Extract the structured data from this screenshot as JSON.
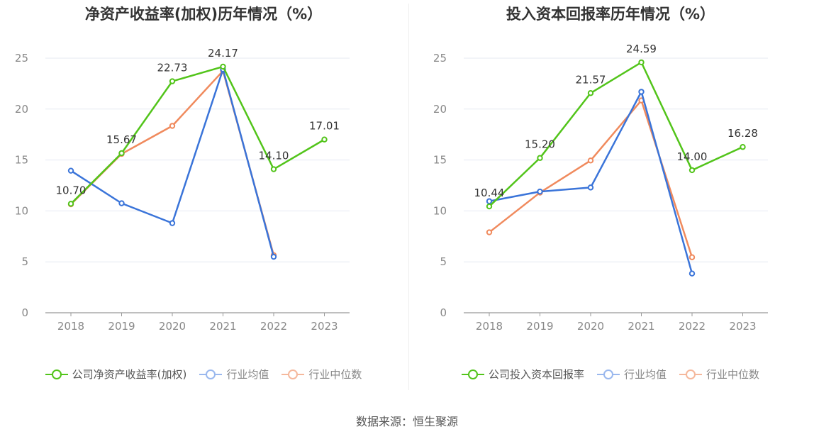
{
  "charts": [
    {
      "title": "净资产收益率(加权)历年情况（%）",
      "legend": [
        "公司净资产收益率(加权)",
        "行业均值",
        "行业中位数"
      ]
    },
    {
      "title": "投入资本回报率历年情况（%）",
      "legend": [
        "公司投入资本回报率",
        "行业均值",
        "行业中位数"
      ]
    }
  ],
  "source": "数据来源：恒生聚源",
  "colors": {
    "company": "#52c41a",
    "mean": "#3a74d9",
    "median": "#f08a5d",
    "grid": "#e6e9f2",
    "axis": "#999999",
    "tick_text": "#888888"
  },
  "chart_data": [
    {
      "type": "line",
      "title": "净资产收益率(加权)历年情况（%）",
      "categories": [
        "2018",
        "2019",
        "2020",
        "2021",
        "2022",
        "2023"
      ],
      "ylim": [
        0,
        25
      ],
      "yticks": [
        0,
        5,
        10,
        15,
        20,
        25
      ],
      "grid": true,
      "legend_position": "bottom",
      "series": [
        {
          "name": "公司净资产收益率(加权)",
          "values": [
            10.7,
            15.67,
            22.73,
            24.17,
            14.1,
            17.01
          ],
          "labels": [
            "10.70",
            "15.67",
            "22.73",
            "24.17",
            "14.10",
            "17.01"
          ]
        },
        {
          "name": "行业均值",
          "values": [
            13.95,
            10.75,
            8.8,
            23.9,
            5.5,
            null
          ]
        },
        {
          "name": "行业中位数",
          "values": [
            10.65,
            15.6,
            18.35,
            23.75,
            5.65,
            null
          ]
        }
      ]
    },
    {
      "type": "line",
      "title": "投入资本回报率历年情况（%）",
      "categories": [
        "2018",
        "2019",
        "2020",
        "2021",
        "2022",
        "2023"
      ],
      "ylim": [
        0,
        25
      ],
      "yticks": [
        0,
        5,
        10,
        15,
        20,
        25
      ],
      "grid": true,
      "legend_position": "bottom",
      "series": [
        {
          "name": "公司投入资本回报率",
          "values": [
            10.44,
            15.2,
            21.57,
            24.59,
            14.0,
            16.28
          ],
          "labels": [
            "10.44",
            "15.20",
            "21.57",
            "24.59",
            "14.00",
            "16.28"
          ]
        },
        {
          "name": "行业均值",
          "values": [
            10.95,
            11.9,
            12.3,
            21.7,
            3.85,
            null
          ]
        },
        {
          "name": "行业中位数",
          "values": [
            7.9,
            11.8,
            14.95,
            20.85,
            5.45,
            null
          ]
        }
      ]
    }
  ]
}
